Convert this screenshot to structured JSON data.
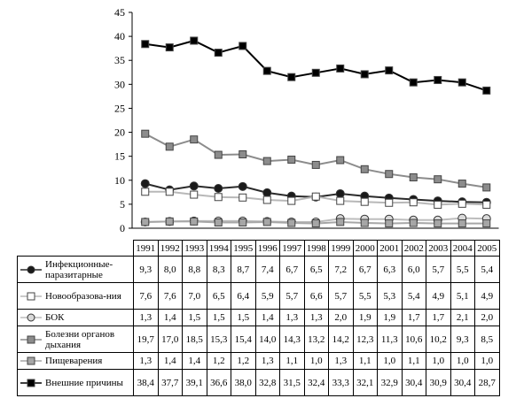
{
  "chart_data": {
    "type": "line",
    "title": "",
    "xlabel": "",
    "ylabel": "",
    "ylim": [
      0,
      45
    ],
    "yticks": [
      0,
      5,
      10,
      15,
      20,
      25,
      30,
      35,
      40,
      45
    ],
    "grid": false,
    "categories": [
      "1991",
      "1992",
      "1993",
      "1994",
      "1995",
      "1996",
      "1997",
      "1998",
      "1999",
      "2000",
      "2001",
      "2002",
      "2003",
      "2004",
      "2005"
    ],
    "series": [
      {
        "name": "Инфекционные-паразитарные",
        "marker": "circle",
        "fill": "#1a1a1a",
        "line": "#2a2a2a",
        "values": [
          9.3,
          8.0,
          8.8,
          8.3,
          8.7,
          7.4,
          6.7,
          6.5,
          7.2,
          6.7,
          6.3,
          6.0,
          5.7,
          5.5,
          5.4
        ]
      },
      {
        "name": "Новообразова-ния",
        "marker": "square",
        "fill": "#ffffff",
        "line": "#b8b8b8",
        "values": [
          7.6,
          7.6,
          7.0,
          6.5,
          6.4,
          5.9,
          5.7,
          6.6,
          5.7,
          5.5,
          5.3,
          5.4,
          4.9,
          5.1,
          4.9
        ]
      },
      {
        "name": "БОК",
        "marker": "circle",
        "fill": "#d9d9d9",
        "line": "#bdbdbd",
        "values": [
          1.3,
          1.4,
          1.5,
          1.5,
          1.5,
          1.4,
          1.3,
          1.3,
          2.0,
          1.9,
          1.9,
          1.7,
          1.7,
          2.1,
          2.0
        ]
      },
      {
        "name": "Болезни органов дыхания",
        "marker": "square",
        "fill": "#8c8c8c",
        "line": "#8c8c8c",
        "values": [
          19.7,
          17.0,
          18.5,
          15.3,
          15.4,
          14.0,
          14.3,
          13.2,
          14.2,
          12.3,
          11.3,
          10.6,
          10.2,
          9.3,
          8.5
        ]
      },
      {
        "name": "Пищеварения",
        "marker": "square",
        "fill": "#a6a6a6",
        "line": "#a6a6a6",
        "values": [
          1.3,
          1.4,
          1.4,
          1.2,
          1.2,
          1.3,
          1.1,
          1.0,
          1.3,
          1.1,
          1.0,
          1.1,
          1.0,
          1.0,
          1.0
        ]
      },
      {
        "name": "Внешние причины",
        "marker": "square",
        "fill": "#000000",
        "line": "#000000",
        "values": [
          38.4,
          37.7,
          39.1,
          36.6,
          38.0,
          32.8,
          31.5,
          32.4,
          33.3,
          32.1,
          32.9,
          30.4,
          30.9,
          30.4,
          28.7
        ]
      }
    ]
  },
  "table": {
    "rows": [
      {
        "label": "Инфекционные-паразитарные",
        "cells": [
          "9,3",
          "8,0",
          "8,8",
          "8,3",
          "8,7",
          "7,4",
          "6,7",
          "6,5",
          "7,2",
          "6,7",
          "6,3",
          "6,0",
          "5,7",
          "5,5",
          "5,4"
        ]
      },
      {
        "label": "Новообразова-ния",
        "cells": [
          "7,6",
          "7,6",
          "7,0",
          "6,5",
          "6,4",
          "5,9",
          "5,7",
          "6,6",
          "5,7",
          "5,5",
          "5,3",
          "5,4",
          "4,9",
          "5,1",
          "4,9"
        ]
      },
      {
        "label": "БОК",
        "cells": [
          "1,3",
          "1,4",
          "1,5",
          "1,5",
          "1,5",
          "1,4",
          "1,3",
          "1,3",
          "2,0",
          "1,9",
          "1,9",
          "1,7",
          "1,7",
          "2,1",
          "2,0"
        ]
      },
      {
        "label": "Болезни органов дыхания",
        "cells": [
          "19,7",
          "17,0",
          "18,5",
          "15,3",
          "15,4",
          "14,0",
          "14,3",
          "13,2",
          "14,2",
          "12,3",
          "11,3",
          "10,6",
          "10,2",
          "9,3",
          "8,5"
        ]
      },
      {
        "label": "Пищеварения",
        "cells": [
          "1,3",
          "1,4",
          "1,4",
          "1,2",
          "1,2",
          "1,3",
          "1,1",
          "1,0",
          "1,3",
          "1,1",
          "1,0",
          "1,1",
          "1,0",
          "1,0",
          "1,0"
        ]
      },
      {
        "label": "Внешние причины",
        "cells": [
          "38,4",
          "37,7",
          "39,1",
          "36,6",
          "38,0",
          "32,8",
          "31,5",
          "32,4",
          "33,3",
          "32,1",
          "32,9",
          "30,4",
          "30,9",
          "30,4",
          "28,7"
        ]
      }
    ]
  }
}
